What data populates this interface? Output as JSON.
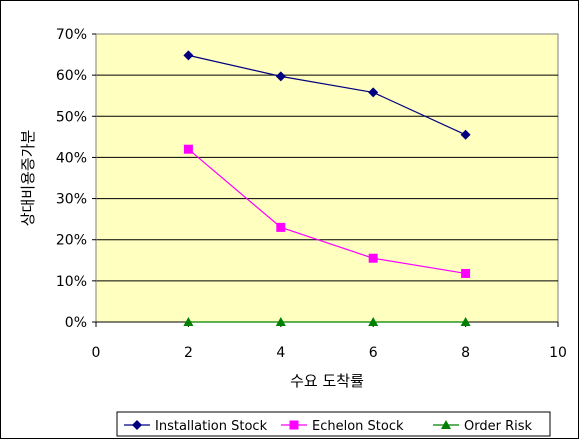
{
  "chart_data": {
    "type": "line",
    "title": "",
    "xlabel": "수요 도착률",
    "ylabel": "상대비용증가분",
    "xlim": [
      0,
      10
    ],
    "ylim": [
      0,
      0.7
    ],
    "x_ticks": [
      0,
      2,
      4,
      6,
      8,
      10
    ],
    "y_ticks": [
      0,
      0.1,
      0.2,
      0.3,
      0.4,
      0.5,
      0.6,
      0.7
    ],
    "y_tick_labels": [
      "0%",
      "10%",
      "20%",
      "30%",
      "40%",
      "50%",
      "60%",
      "70%"
    ],
    "grid": "horizontal",
    "legend_placement": "bottom",
    "plot_background": "#ffffc0",
    "series": [
      {
        "name": "Installation Stock",
        "color": "#000080",
        "marker": "diamond",
        "x": [
          2,
          4,
          6,
          8
        ],
        "y": [
          0.648,
          0.597,
          0.558,
          0.455
        ]
      },
      {
        "name": "Echelon Stock",
        "color": "#ff00ff",
        "marker": "square",
        "x": [
          2,
          4,
          6,
          8
        ],
        "y": [
          0.42,
          0.23,
          0.155,
          0.118
        ]
      },
      {
        "name": "Order Risk",
        "color": "#008000",
        "marker": "triangle",
        "x": [
          2,
          4,
          6,
          8
        ],
        "y": [
          0,
          0,
          0,
          0
        ]
      }
    ]
  }
}
